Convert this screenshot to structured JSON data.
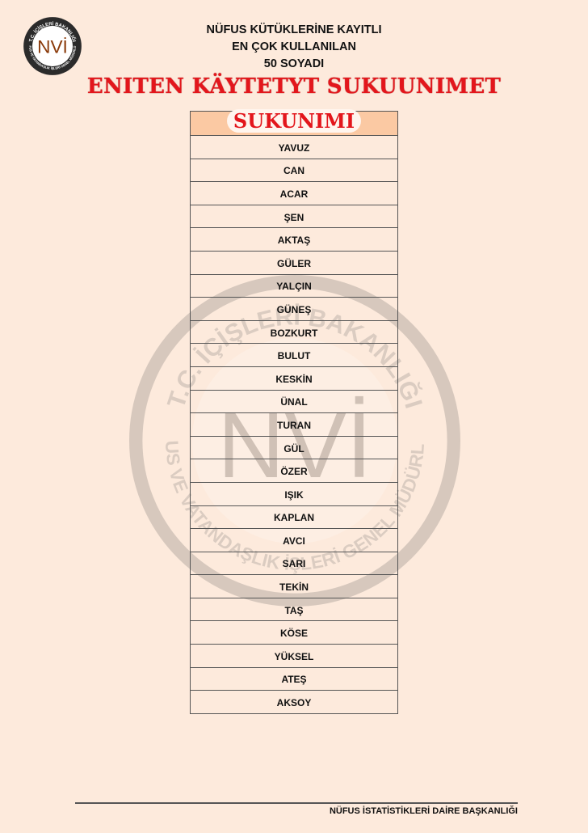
{
  "logo": {
    "text": "NVİ",
    "ring_top": "T.C. İÇİŞLERİ BAKANLIĞI",
    "ring_bottom": "NÜFUS VE VATANDAŞLIK İŞLERİ GENEL MÜDÜRLÜĞÜ"
  },
  "header": {
    "line1": "NÜFUS KÜTÜKLERİNE KAYITLI",
    "line2": "EN ÇOK KULLANILAN",
    "line3": "50 SOYADI",
    "title": "ENITEN KÄYTETYT SUKUUNIMET"
  },
  "table": {
    "header": "SUKUNIMI",
    "rows": [
      "YAVUZ",
      "CAN",
      "ACAR",
      "ŞEN",
      "AKTAŞ",
      "GÜLER",
      "YALÇIN",
      "GÜNEŞ",
      "BOZKURT",
      "BULUT",
      "KESKİN",
      "ÜNAL",
      "TURAN",
      "GÜL",
      "ÖZER",
      "IŞIK",
      "KAPLAN",
      "AVCI",
      "SARI",
      "TEKİN",
      "TAŞ",
      "KÖSE",
      "YÜKSEL",
      "ATEŞ",
      "AKSOY"
    ]
  },
  "footer": {
    "text": "NÜFUS İSTATİSTİKLERİ DAİRE BAŞKANLIĞI"
  },
  "colors": {
    "background": "#fdeadc",
    "title_red": "#e3161c",
    "header_fill": "#fbc9a3"
  }
}
